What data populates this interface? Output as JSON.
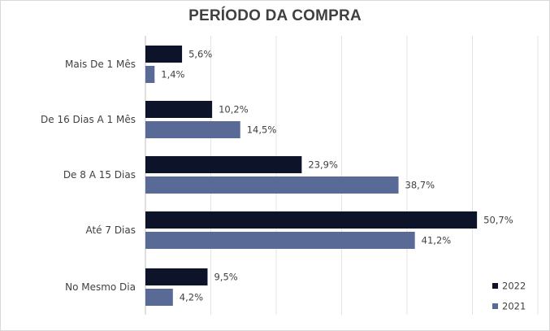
{
  "chart_data": {
    "type": "bar",
    "orientation": "horizontal",
    "title": "PERÍODO DA COMPRA",
    "categories": [
      "Mais De 1 Mês",
      "De 16 Dias A 1 Mês",
      "De 8 A 15 Dias",
      "Até 7 Dias",
      "No Mesmo Dia"
    ],
    "series": [
      {
        "name": "2022",
        "values": [
          5.6,
          10.2,
          23.9,
          50.7,
          9.5
        ],
        "labels": [
          "5,6%",
          "10,2%",
          "23,9%",
          "50,7%",
          "9,5%"
        ],
        "color": "#0d1329"
      },
      {
        "name": "2021",
        "values": [
          1.4,
          14.5,
          38.7,
          41.2,
          4.2
        ],
        "labels": [
          "1,4%",
          "14,5%",
          "38,7%",
          "41,2%",
          "4,2%"
        ],
        "color": "#5a6a96"
      }
    ],
    "xlim": [
      0,
      60
    ],
    "grid": true,
    "legend_position": "bottom-right"
  }
}
